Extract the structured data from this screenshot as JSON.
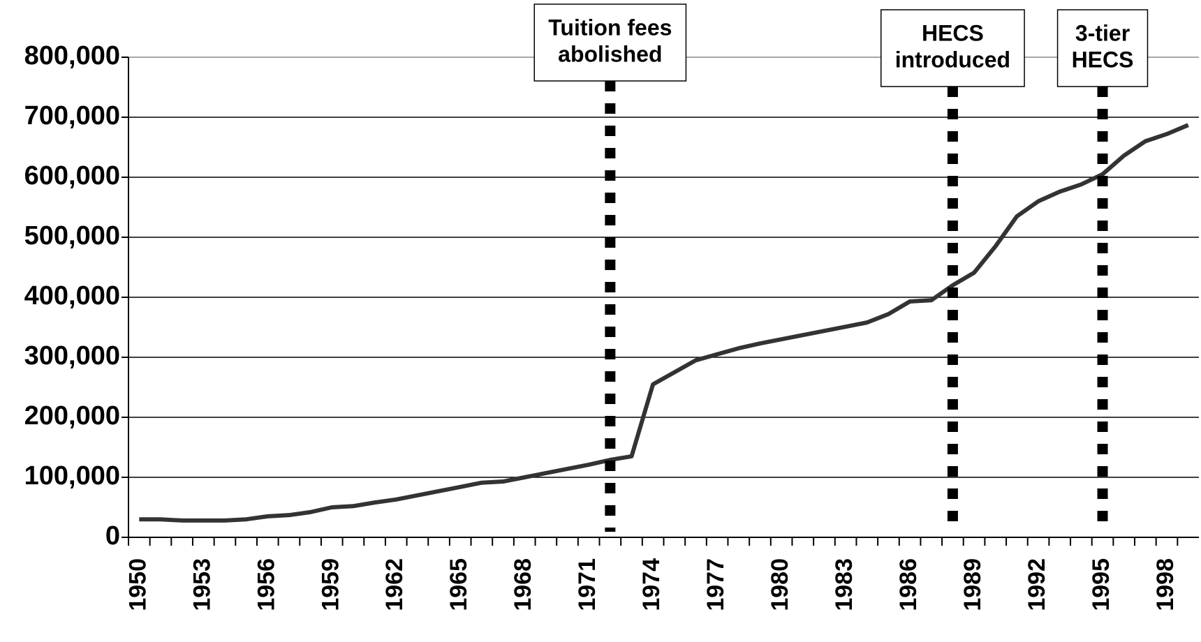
{
  "chart_data": {
    "type": "line",
    "categories": [
      "1950",
      null,
      null,
      "1953",
      null,
      null,
      "1956",
      null,
      null,
      "1959",
      null,
      null,
      "1962",
      null,
      null,
      "1965",
      null,
      null,
      "1968",
      null,
      null,
      "1971",
      null,
      null,
      "1974",
      null,
      null,
      "1977",
      null,
      null,
      "1980",
      null,
      null,
      "1983",
      null,
      null,
      "1986",
      null,
      null,
      "1989",
      null,
      null,
      "1992",
      null,
      null,
      "1995",
      null,
      null,
      "1998",
      null
    ],
    "values": [
      30000,
      30000,
      28000,
      28000,
      28000,
      30000,
      35000,
      37000,
      42000,
      50000,
      52000,
      58000,
      63000,
      70000,
      77000,
      84000,
      91000,
      93000,
      100000,
      107000,
      114000,
      121000,
      129000,
      135000,
      255000,
      275000,
      295000,
      305000,
      315000,
      323000,
      330000,
      337000,
      344000,
      351000,
      358000,
      372000,
      393000,
      395000,
      420000,
      441000,
      485000,
      535000,
      560000,
      576000,
      588000,
      605000,
      636000,
      660000,
      672000,
      687000
    ],
    "color": "#333333",
    "ylim": [
      0,
      800000
    ],
    "yticks": [
      0,
      {
        "value": 100000,
        "label": "100,000"
      },
      {
        "value": 200000,
        "label": "200,000"
      },
      {
        "value": 300000,
        "label": "300,000"
      },
      {
        "value": 400000,
        "label": "400,000"
      },
      {
        "value": 500000,
        "label": "500,000"
      },
      {
        "value": 600000,
        "label": "600,000"
      },
      {
        "value": 700000,
        "label": "700,000"
      },
      {
        "value": 800000,
        "label": "800,000"
      }
    ],
    "grid": true,
    "annotations": [
      {
        "text": [
          "Tuition fees",
          "abolished"
        ],
        "category": 22
      },
      {
        "text": [
          "HECS",
          "introduced"
        ],
        "category": 38
      },
      {
        "text": [
          "3-tier",
          "HECS"
        ],
        "category": 45
      }
    ]
  }
}
